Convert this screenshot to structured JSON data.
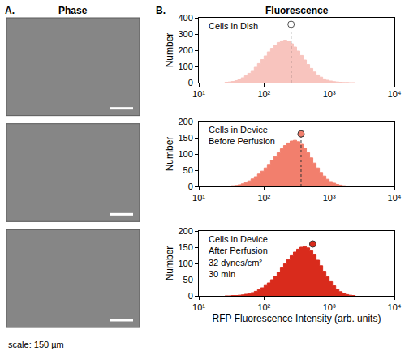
{
  "figure": {
    "panel_a": {
      "letter": "A.",
      "title": "Phase",
      "images": 3,
      "scale_label": "scale: 150 µm"
    },
    "panel_b": {
      "letter": "B.",
      "title": "Fluorescence"
    }
  },
  "chart_data": [
    {
      "type": "histogram",
      "annotation": [
        "Cells in Dish"
      ],
      "y_label": "Number",
      "bins": [
        25.1,
        28.2,
        31.6,
        35.5,
        39.8,
        44.7,
        50.1,
        56.2,
        63.1,
        70.8,
        79.4,
        89.1,
        100,
        112.2,
        125.9,
        141.3,
        158.5,
        177.8,
        199.5,
        223.9,
        251.2,
        281.8,
        316.2,
        354.8,
        398.1,
        446.7,
        501.2,
        562.3,
        631.0,
        707.9,
        794.3,
        891.3,
        1000,
        1122,
        1259,
        1413,
        1585,
        1778,
        1995,
        2239,
        2512
      ],
      "counts": [
        2,
        4,
        7,
        12,
        20,
        30,
        42,
        58,
        75,
        95,
        118,
        142,
        165,
        190,
        212,
        232,
        248,
        258,
        262,
        255,
        240,
        220,
        195,
        168,
        140,
        112,
        88,
        66,
        48,
        34,
        23,
        15,
        10,
        6,
        4,
        2,
        1,
        1,
        0,
        0
      ],
      "color": "#f8c4be",
      "log": "x",
      "grid": false,
      "xlim": [
        10,
        10000
      ],
      "xticks": [
        {
          "value": 10,
          "label": "10¹"
        },
        {
          "value": 100,
          "label": "10²"
        },
        {
          "value": 1000,
          "label": "10³"
        },
        {
          "value": 10000,
          "label": "10⁴"
        }
      ],
      "ylim": [
        0,
        400
      ],
      "yticks": [
        0,
        100,
        200,
        300,
        400
      ],
      "mean": {
        "x": 260,
        "y": 360,
        "marker": "open circle",
        "line_style": "dotted"
      }
    },
    {
      "type": "histogram",
      "annotation": [
        "Cells in Device",
        "Before Perfusion"
      ],
      "y_label": "Number",
      "bins": [
        25.1,
        28.2,
        31.6,
        35.5,
        39.8,
        44.7,
        50.1,
        56.2,
        63.1,
        70.8,
        79.4,
        89.1,
        100,
        112.2,
        125.9,
        141.3,
        158.5,
        177.8,
        199.5,
        223.9,
        251.2,
        281.8,
        316.2,
        354.8,
        398.1,
        446.7,
        501.2,
        562.3,
        631.0,
        707.9,
        794.3,
        891.3,
        1000,
        1122,
        1259,
        1413,
        1585,
        1778,
        1995,
        2239,
        2512
      ],
      "counts": [
        0,
        1,
        2,
        3,
        5,
        8,
        12,
        17,
        23,
        30,
        38,
        47,
        57,
        68,
        80,
        92,
        104,
        116,
        126,
        134,
        140,
        142,
        138,
        130,
        118,
        104,
        88,
        72,
        57,
        43,
        32,
        22,
        15,
        10,
        6,
        4,
        2,
        1,
        1,
        0
      ],
      "color": "#f27f6d",
      "log": "x",
      "grid": false,
      "xlim": [
        10,
        10000
      ],
      "xticks": [
        {
          "value": 10,
          "label": "10¹"
        },
        {
          "value": 100,
          "label": "10²"
        },
        {
          "value": 1000,
          "label": "10³"
        },
        {
          "value": 10000,
          "label": "10⁴"
        }
      ],
      "ylim": [
        0,
        200
      ],
      "yticks": [
        0,
        50,
        100,
        150,
        200
      ],
      "mean": {
        "x": 370,
        "y": 162,
        "marker": "circle",
        "line_style": "dotted"
      }
    },
    {
      "type": "histogram",
      "annotation": [
        "Cells in Device",
        "After Perfusion",
        "32 dynes/cm²",
        "30 min"
      ],
      "y_label": "Number",
      "x_label": "RFP Fluorescence Intensity (arb. units)",
      "bins": [
        25.1,
        28.2,
        31.6,
        35.5,
        39.8,
        44.7,
        50.1,
        56.2,
        63.1,
        70.8,
        79.4,
        89.1,
        100,
        112.2,
        125.9,
        141.3,
        158.5,
        177.8,
        199.5,
        223.9,
        251.2,
        281.8,
        316.2,
        354.8,
        398.1,
        446.7,
        501.2,
        562.3,
        631.0,
        707.9,
        794.3,
        891.3,
        1000,
        1122,
        1259,
        1413,
        1585,
        1778,
        1995,
        2239,
        2512
      ],
      "counts": [
        0,
        0,
        1,
        1,
        2,
        3,
        5,
        7,
        10,
        14,
        19,
        25,
        32,
        40,
        50,
        61,
        73,
        86,
        99,
        112,
        124,
        135,
        144,
        150,
        152,
        148,
        139,
        126,
        110,
        93,
        76,
        59,
        44,
        31,
        21,
        13,
        8,
        4,
        2,
        1
      ],
      "color": "#d92b1c",
      "log": "x",
      "grid": false,
      "xlim": [
        10,
        10000
      ],
      "xticks": [
        {
          "value": 10,
          "label": "10¹"
        },
        {
          "value": 100,
          "label": "10²"
        },
        {
          "value": 1000,
          "label": "10³"
        },
        {
          "value": 10000,
          "label": "10⁴"
        }
      ],
      "ylim": [
        0,
        200
      ],
      "yticks": [
        0,
        50,
        100,
        150,
        200
      ],
      "mean": {
        "x": 560,
        "y": 160,
        "marker": "circle",
        "line_style": "none"
      }
    }
  ]
}
